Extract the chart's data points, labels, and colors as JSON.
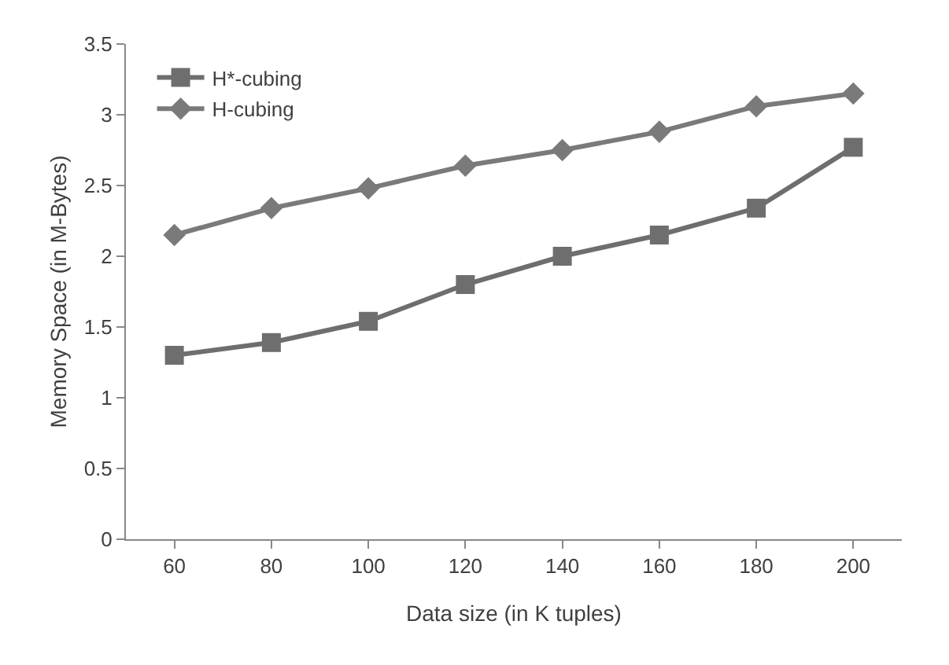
{
  "chart_data": {
    "type": "line",
    "xlabel": "Data size (in K tuples)",
    "ylabel": "Memory Space (in M-Bytes)",
    "categories": [
      "60",
      "80",
      "100",
      "120",
      "140",
      "160",
      "180",
      "200"
    ],
    "series": [
      {
        "name": "H*-cubing",
        "color": "#6e6e6e",
        "marker": "square",
        "values": [
          1.3,
          1.39,
          1.54,
          1.8,
          2.0,
          2.15,
          2.34,
          2.77
        ]
      },
      {
        "name": "H-cubing",
        "color": "#7a7a7a",
        "marker": "diamond",
        "values": [
          2.15,
          2.34,
          2.48,
          2.64,
          2.75,
          2.88,
          3.06,
          3.15
        ]
      }
    ],
    "ylim": [
      0,
      3.5
    ],
    "yticks": [
      0,
      0.5,
      1,
      1.5,
      2,
      2.5,
      3,
      3.5
    ],
    "grid": false,
    "legend": "top left",
    "line_style": "solid"
  }
}
